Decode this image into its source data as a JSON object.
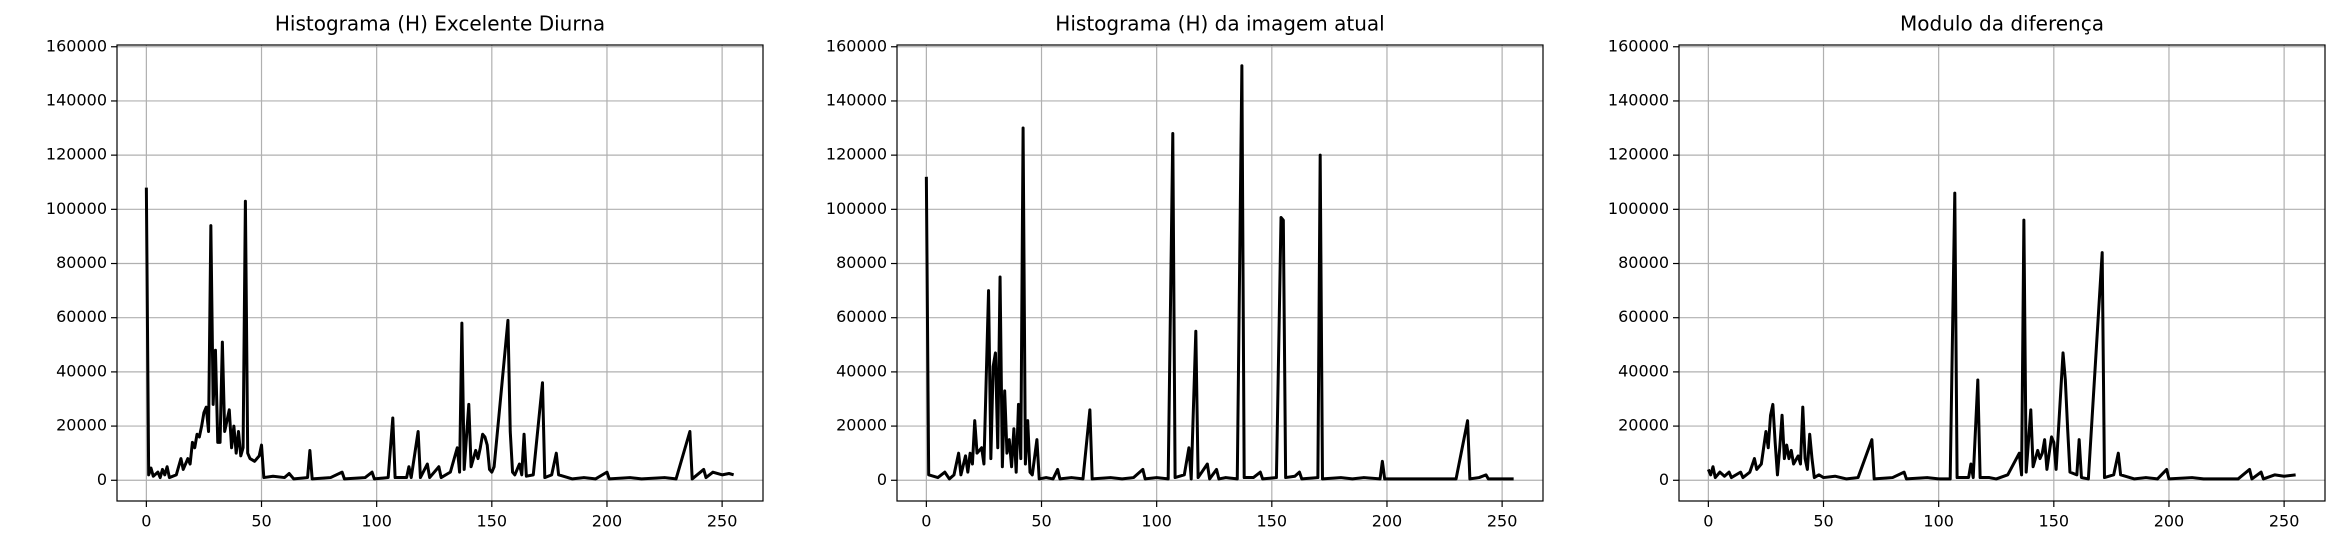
{
  "chart_data": [
    {
      "type": "line",
      "title": "Histograma (H) Excelente Diurna",
      "color": "#000000",
      "grid": true,
      "xlim": [
        -12.75,
        267.75
      ],
      "xticks": [
        0,
        50,
        100,
        150,
        200,
        250
      ],
      "ylim": [
        -7650,
        160650
      ],
      "yticks": [
        0,
        20000,
        40000,
        60000,
        80000,
        100000,
        120000,
        140000,
        160000
      ],
      "x": [
        0,
        1,
        2,
        3,
        5,
        6,
        7,
        8,
        9,
        10,
        13,
        15,
        16,
        18,
        19,
        20,
        21,
        22,
        23,
        24,
        25,
        26,
        27,
        28,
        29,
        30,
        31,
        32,
        33,
        34,
        35,
        36,
        37,
        38,
        39,
        40,
        41,
        42,
        43,
        44,
        45,
        47,
        49,
        50,
        51,
        55,
        60,
        62,
        64,
        70,
        71,
        72,
        80,
        85,
        86,
        95,
        98,
        99,
        105,
        107,
        108,
        113,
        114,
        115,
        118,
        119,
        122,
        123,
        127,
        128,
        132,
        135,
        136,
        137,
        138,
        140,
        141,
        143,
        144,
        145,
        146,
        147,
        148,
        149,
        150,
        151,
        156,
        157,
        158,
        159,
        160,
        162,
        163,
        164,
        165,
        168,
        172,
        173,
        176,
        178,
        179,
        185,
        190,
        195,
        200,
        201,
        210,
        215,
        225,
        230,
        236,
        237,
        242,
        243,
        246,
        250,
        253,
        255
      ],
      "values": [
        108000,
        2000,
        4500,
        1500,
        3000,
        1000,
        4000,
        2000,
        5000,
        1000,
        2000,
        8000,
        4000,
        8000,
        6000,
        14000,
        12000,
        17000,
        16000,
        20000,
        25000,
        27000,
        18000,
        94000,
        28000,
        48000,
        14000,
        14000,
        51000,
        18000,
        22000,
        26000,
        12000,
        20000,
        10000,
        18000,
        9000,
        12000,
        103000,
        10000,
        8000,
        7000,
        9000,
        13000,
        1000,
        1500,
        1000,
        2500,
        500,
        1000,
        11000,
        500,
        1000,
        3000,
        500,
        1000,
        3000,
        500,
        1000,
        23000,
        1000,
        1000,
        5000,
        1000,
        18000,
        1000,
        6000,
        1000,
        5000,
        1000,
        3000,
        12000,
        3000,
        58000,
        4000,
        28000,
        5000,
        11000,
        8000,
        12000,
        17000,
        16000,
        13000,
        4000,
        3000,
        5000,
        50000,
        59000,
        18000,
        3000,
        2000,
        6000,
        2000,
        17000,
        1500,
        2000,
        36000,
        1000,
        2000,
        10000,
        2000,
        500,
        1000,
        500,
        3000,
        500,
        1000,
        500,
        1000,
        500,
        18000,
        500,
        4000,
        1000,
        3000,
        2000,
        2500,
        2000
      ]
    },
    {
      "type": "line",
      "title": "Histograma (H) da imagem atual",
      "color": "#000000",
      "grid": true,
      "xlim": [
        -12.75,
        267.75
      ],
      "xticks": [
        0,
        50,
        100,
        150,
        200,
        250
      ],
      "ylim": [
        -7650,
        160650
      ],
      "yticks": [
        0,
        20000,
        40000,
        60000,
        80000,
        100000,
        120000,
        140000,
        160000
      ],
      "x": [
        0,
        1,
        5,
        8,
        10,
        12,
        14,
        15,
        17,
        18,
        19,
        20,
        21,
        22,
        24,
        25,
        27,
        28,
        29,
        30,
        31,
        32,
        33,
        34,
        35,
        36,
        37,
        38,
        39,
        40,
        41,
        42,
        43,
        44,
        45,
        46,
        48,
        49,
        52,
        55,
        57,
        58,
        63,
        68,
        71,
        72,
        80,
        85,
        90,
        94,
        95,
        100,
        105,
        107,
        108,
        112,
        114,
        115,
        117,
        118,
        122,
        123,
        126,
        127,
        130,
        135,
        137,
        138,
        142,
        145,
        146,
        152,
        154,
        155,
        156,
        160,
        162,
        163,
        170,
        171,
        172,
        180,
        185,
        190,
        197,
        198,
        199,
        210,
        220,
        225,
        230,
        235,
        236,
        240,
        243,
        244,
        255
      ],
      "values": [
        112000,
        2000,
        1000,
        3000,
        500,
        2000,
        10000,
        2000,
        9000,
        3000,
        10000,
        6000,
        22000,
        10000,
        12000,
        6000,
        70000,
        8000,
        42000,
        47000,
        12000,
        75000,
        5000,
        33000,
        10000,
        15000,
        5000,
        19000,
        3000,
        28000,
        8000,
        130000,
        6000,
        22000,
        3000,
        2000,
        15000,
        500,
        1000,
        500,
        4000,
        500,
        1000,
        500,
        26000,
        500,
        1000,
        500,
        1000,
        4000,
        500,
        1000,
        500,
        128000,
        1000,
        2000,
        12000,
        500,
        55000,
        1000,
        6000,
        500,
        4000,
        500,
        1000,
        500,
        153000,
        1000,
        1000,
        3000,
        500,
        1000,
        97000,
        96000,
        1000,
        1500,
        3000,
        500,
        1000,
        120000,
        500,
        1000,
        500,
        1000,
        500,
        7000,
        500,
        500,
        500,
        500,
        500,
        22000,
        500,
        1000,
        2000,
        500,
        500
      ]
    },
    {
      "type": "line",
      "title": "Modulo da diferença",
      "color": "#000000",
      "grid": true,
      "xlim": [
        -12.75,
        267.75
      ],
      "xticks": [
        0,
        50,
        100,
        150,
        200,
        250
      ],
      "ylim": [
        -7650,
        160650
      ],
      "yticks": [
        0,
        20000,
        40000,
        60000,
        80000,
        100000,
        120000,
        140000,
        160000
      ],
      "x": [
        0,
        1,
        2,
        3,
        5,
        7,
        9,
        10,
        14,
        15,
        18,
        20,
        21,
        23,
        25,
        26,
        27,
        28,
        29,
        30,
        31,
        32,
        33,
        34,
        35,
        36,
        37,
        39,
        40,
        41,
        42,
        43,
        44,
        45,
        46,
        48,
        50,
        55,
        60,
        65,
        71,
        72,
        80,
        85,
        86,
        95,
        100,
        105,
        107,
        108,
        113,
        114,
        115,
        117,
        118,
        122,
        125,
        130,
        135,
        136,
        137,
        138,
        140,
        141,
        143,
        144,
        145,
        146,
        147,
        149,
        150,
        151,
        154,
        155,
        156,
        157,
        160,
        161,
        162,
        165,
        171,
        172,
        176,
        178,
        179,
        185,
        190,
        195,
        199,
        200,
        210,
        215,
        220,
        225,
        230,
        235,
        236,
        240,
        241,
        246,
        250,
        255
      ],
      "values": [
        4000,
        2000,
        5000,
        1000,
        3000,
        1500,
        3000,
        1000,
        3000,
        1000,
        3000,
        8000,
        4000,
        6000,
        18000,
        12000,
        24000,
        28000,
        14000,
        2000,
        12000,
        24000,
        8000,
        13000,
        8000,
        11000,
        6000,
        9000,
        6000,
        27000,
        8000,
        4000,
        17000,
        8000,
        1000,
        2000,
        1000,
        1500,
        500,
        1000,
        15000,
        500,
        1000,
        3000,
        500,
        1000,
        500,
        500,
        106000,
        1000,
        1000,
        6000,
        1000,
        37000,
        1000,
        1000,
        500,
        2000,
        10000,
        2000,
        96000,
        3000,
        26000,
        5000,
        11000,
        8000,
        10000,
        15000,
        4000,
        16000,
        14000,
        4000,
        47000,
        37000,
        19000,
        3000,
        2000,
        15000,
        1000,
        500,
        84000,
        1000,
        2000,
        10000,
        2000,
        500,
        1000,
        500,
        4000,
        500,
        1000,
        500,
        500,
        500,
        500,
        4000,
        500,
        3000,
        500,
        2000,
        1500,
        2000
      ]
    }
  ]
}
